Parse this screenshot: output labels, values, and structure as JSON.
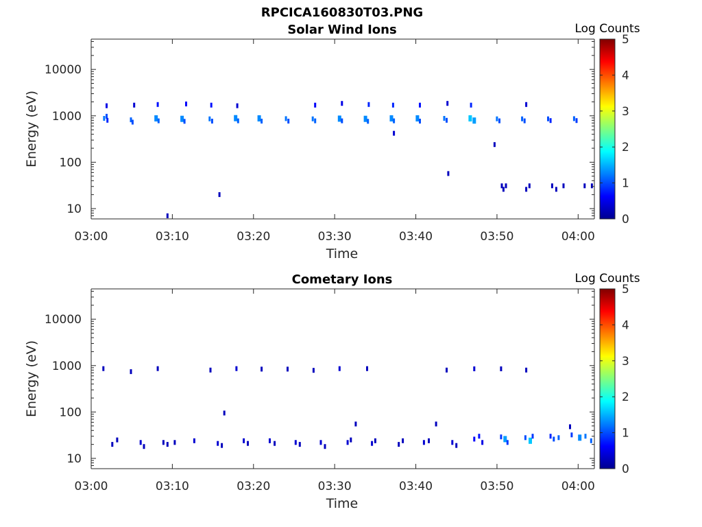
{
  "figure_title": "RPCICA160830T03.PNG",
  "chart_data": [
    {
      "type": "heatmap",
      "title": "Solar Wind Ions",
      "xlabel": "Time",
      "ylabel": "Energy (eV)",
      "xlim": [
        "03:00",
        "04:02"
      ],
      "ylim": [
        6,
        45000
      ],
      "yscale": "log",
      "x_ticks": [
        "03:00",
        "03:10",
        "03:20",
        "03:30",
        "03:40",
        "03:50",
        "04:00"
      ],
      "y_ticks": [
        "10",
        "100",
        "1000",
        "10000"
      ],
      "colorbar": {
        "label": "Log Counts",
        "range": [
          0,
          5
        ],
        "ticks": [
          "0",
          "1",
          "2",
          "3",
          "4",
          "5"
        ]
      },
      "cells": [
        [
          1.6,
          880,
          1.2
        ],
        [
          1.9,
          980,
          1.0
        ],
        [
          2.0,
          800,
          0.8
        ],
        [
          1.9,
          1650,
          0.5
        ],
        [
          4.9,
          820,
          1.1
        ],
        [
          5.1,
          730,
          1.0
        ],
        [
          5.3,
          1700,
          0.4
        ],
        [
          8.0,
          880,
          1.3
        ],
        [
          8.3,
          780,
          1.1
        ],
        [
          8.2,
          1750,
          0.7
        ],
        [
          11.2,
          860,
          1.3
        ],
        [
          11.5,
          760,
          1.0
        ],
        [
          11.7,
          1800,
          0.6
        ],
        [
          14.6,
          860,
          1.2
        ],
        [
          14.9,
          770,
          1.0
        ],
        [
          14.8,
          1700,
          0.7
        ],
        [
          17.8,
          890,
          1.3
        ],
        [
          18.1,
          780,
          1.1
        ],
        [
          18.0,
          1650,
          0.4
        ],
        [
          20.7,
          880,
          1.3
        ],
        [
          21.0,
          770,
          1.1
        ],
        [
          24.0,
          870,
          1.2
        ],
        [
          24.3,
          770,
          1.0
        ],
        [
          27.3,
          860,
          1.2
        ],
        [
          27.6,
          780,
          1.1
        ],
        [
          27.6,
          1700,
          0.6
        ],
        [
          30.6,
          870,
          1.3
        ],
        [
          30.9,
          780,
          1.0
        ],
        [
          30.9,
          1850,
          0.5
        ],
        [
          33.8,
          860,
          1.3
        ],
        [
          34.1,
          760,
          1.1
        ],
        [
          34.2,
          1750,
          0.8
        ],
        [
          37.0,
          880,
          1.3
        ],
        [
          37.3,
          780,
          1.1
        ],
        [
          37.2,
          1700,
          0.8
        ],
        [
          37.3,
          420,
          0.4
        ],
        [
          40.2,
          880,
          1.3
        ],
        [
          40.5,
          770,
          1.0
        ],
        [
          40.5,
          1700,
          0.7
        ],
        [
          43.5,
          880,
          1.2
        ],
        [
          43.8,
          800,
          1.0
        ],
        [
          43.9,
          1850,
          0.4
        ],
        [
          46.7,
          880,
          1.6
        ],
        [
          47.2,
          790,
          1.4
        ],
        [
          46.8,
          1700,
          0.8
        ],
        [
          50.0,
          860,
          1.2
        ],
        [
          50.3,
          780,
          1.0
        ],
        [
          53.1,
          860,
          1.1
        ],
        [
          53.4,
          780,
          1.0
        ],
        [
          53.6,
          1750,
          0.4
        ],
        [
          56.3,
          860,
          1.0
        ],
        [
          56.6,
          790,
          0.8
        ],
        [
          59.5,
          870,
          1.1
        ],
        [
          59.8,
          790,
          0.9
        ],
        [
          49.7,
          240,
          0.3
        ],
        [
          44.0,
          57,
          0.3
        ],
        [
          15.8,
          20,
          0.3
        ],
        [
          9.4,
          7,
          0.3
        ],
        [
          50.6,
          31,
          0.3
        ],
        [
          51.1,
          31,
          0.3
        ],
        [
          50.8,
          26,
          0.3
        ],
        [
          54.0,
          31,
          0.3
        ],
        [
          53.6,
          26,
          0.3
        ],
        [
          56.8,
          31,
          0.3
        ],
        [
          57.3,
          26,
          0.3
        ],
        [
          58.2,
          31,
          0.3
        ],
        [
          60.8,
          31,
          0.3
        ],
        [
          61.7,
          31,
          0.3
        ]
      ]
    },
    {
      "type": "heatmap",
      "title": "Cometary Ions",
      "xlabel": "Time",
      "ylabel": "Energy (eV)",
      "xlim": [
        "03:00",
        "04:02"
      ],
      "ylim": [
        6,
        45000
      ],
      "yscale": "log",
      "x_ticks": [
        "03:00",
        "03:10",
        "03:20",
        "03:30",
        "03:40",
        "03:50",
        "04:00"
      ],
      "y_ticks": [
        "10",
        "100",
        "1000",
        "10000"
      ],
      "colorbar": {
        "label": "Log Counts",
        "range": [
          0,
          5
        ],
        "ticks": [
          "0",
          "1",
          "2",
          "3",
          "4",
          "5"
        ]
      },
      "cells": [
        [
          1.5,
          860,
          0.3
        ],
        [
          4.9,
          740,
          0.3
        ],
        [
          8.2,
          860,
          0.3
        ],
        [
          14.7,
          800,
          0.3
        ],
        [
          17.9,
          860,
          0.4
        ],
        [
          21.0,
          840,
          0.3
        ],
        [
          24.2,
          840,
          0.3
        ],
        [
          27.4,
          790,
          0.3
        ],
        [
          30.6,
          860,
          0.4
        ],
        [
          34.0,
          860,
          0.3
        ],
        [
          43.8,
          800,
          0.3
        ],
        [
          47.2,
          850,
          0.4
        ],
        [
          50.5,
          850,
          0.3
        ],
        [
          53.6,
          800,
          0.3
        ],
        [
          16.4,
          95,
          0.3
        ],
        [
          32.6,
          55,
          0.3
        ],
        [
          42.5,
          55,
          0.3
        ],
        [
          59.0,
          48,
          0.3
        ],
        [
          2.6,
          20,
          0.3
        ],
        [
          3.2,
          25,
          0.3
        ],
        [
          6.1,
          22,
          0.4
        ],
        [
          6.5,
          18,
          0.3
        ],
        [
          8.9,
          22,
          0.3
        ],
        [
          9.4,
          20,
          0.3
        ],
        [
          10.3,
          22,
          0.3
        ],
        [
          12.7,
          24,
          0.4
        ],
        [
          15.6,
          21,
          0.4
        ],
        [
          16.1,
          19,
          0.3
        ],
        [
          18.8,
          24,
          0.4
        ],
        [
          19.3,
          21,
          0.3
        ],
        [
          22.0,
          24,
          0.4
        ],
        [
          22.6,
          21,
          0.3
        ],
        [
          25.2,
          22,
          0.4
        ],
        [
          25.7,
          20,
          0.3
        ],
        [
          28.3,
          22,
          0.4
        ],
        [
          28.8,
          18,
          0.3
        ],
        [
          31.6,
          22,
          0.4
        ],
        [
          32.0,
          25,
          0.3
        ],
        [
          34.6,
          21,
          0.4
        ],
        [
          35.0,
          24,
          0.3
        ],
        [
          37.9,
          20,
          0.3
        ],
        [
          38.4,
          24,
          0.3
        ],
        [
          41.0,
          22,
          0.4
        ],
        [
          41.6,
          24,
          0.3
        ],
        [
          44.5,
          22,
          0.4
        ],
        [
          45.0,
          19,
          0.3
        ],
        [
          47.2,
          26,
          0.6
        ],
        [
          47.8,
          30,
          0.7
        ],
        [
          48.2,
          22,
          0.5
        ],
        [
          50.5,
          29,
          0.9
        ],
        [
          51.0,
          26,
          1.4
        ],
        [
          51.3,
          22,
          0.9
        ],
        [
          53.5,
          28,
          1.0
        ],
        [
          54.1,
          24,
          1.6
        ],
        [
          54.4,
          30,
          0.9
        ],
        [
          56.6,
          30,
          0.8
        ],
        [
          57.0,
          26,
          1.0
        ],
        [
          57.6,
          28,
          1.1
        ],
        [
          59.2,
          32,
          0.9
        ],
        [
          60.2,
          28,
          1.3
        ],
        [
          60.9,
          30,
          1.2
        ],
        [
          61.6,
          24,
          1.1
        ]
      ]
    }
  ]
}
